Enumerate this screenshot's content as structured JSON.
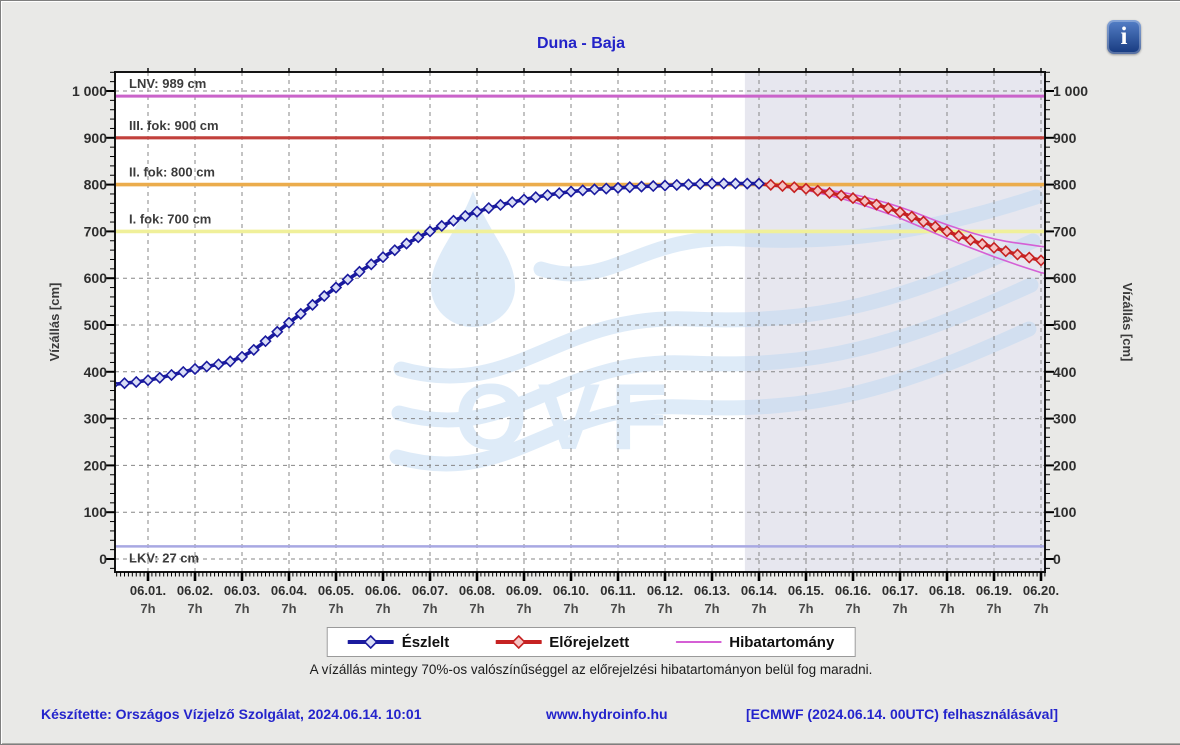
{
  "window": {
    "info_icon_glyph": "i"
  },
  "chart": {
    "watermark": "OVF"
  },
  "chart_data": {
    "type": "line",
    "title": "Duna - Baja",
    "ylabel": "Vízállás [cm]",
    "x_tick_labels": [
      "06.01.",
      "06.02.",
      "06.03.",
      "06.04.",
      "06.05.",
      "06.06.",
      "06.07.",
      "06.08.",
      "06.09.",
      "06.10.",
      "06.11.",
      "06.12.",
      "06.13.",
      "06.14.",
      "06.15.",
      "06.16.",
      "06.17.",
      "06.18.",
      "06.19.",
      "06.20."
    ],
    "x_tick_sublabel": "7h",
    "x_minor_step_hours": 2,
    "yticks": {
      "values": [
        0,
        100,
        200,
        300,
        400,
        500,
        600,
        700,
        800,
        900,
        1000
      ],
      "labels": [
        "0",
        "100",
        "200",
        "300",
        "400",
        "500",
        "600",
        "700",
        "800",
        "900",
        "1 000"
      ]
    },
    "y_minor_step": 20,
    "ylim": [
      -28,
      1041
    ],
    "xlim_days": [
      -0.723,
      19.106
    ],
    "forecast_region_start_day": 12.7,
    "marker_interval_hours": 6,
    "colors": {
      "observed_bg": "#ffffff",
      "forecast_bg": "#e7e7ef",
      "grid": "#878787"
    },
    "reference_lines": [
      {
        "label": "LNV: 989 cm",
        "value": 989,
        "color": "#ca63ca",
        "width": 3.0,
        "label_side": "above"
      },
      {
        "label": "III. fok: 900 cm",
        "value": 900,
        "color": "#c2403c",
        "width": 3.2,
        "label_side": "above"
      },
      {
        "label": "II. fok: 800 cm",
        "value": 800,
        "color": "#ebac4c",
        "width": 3.6,
        "label_side": "above"
      },
      {
        "label": "I. fok: 700 cm",
        "value": 700,
        "color": "#f0f09a",
        "width": 3.6,
        "label_side": "above"
      },
      {
        "label": "LKV: 27 cm",
        "value": 27,
        "color": "#a8a8e2",
        "width": 2.6,
        "label_side": "below"
      }
    ],
    "series": [
      {
        "name": "Hibatartomány felső",
        "color": "#d55fd5",
        "width": 1.6,
        "marker": "none",
        "x": [
          13,
          14,
          15,
          16,
          17,
          18,
          19,
          19.3
        ],
        "y": [
          802,
          794,
          779,
          752,
          714,
          684,
          668,
          665
        ]
      },
      {
        "name": "Hibatartomány alsó",
        "color": "#d55fd5",
        "width": 1.6,
        "marker": "none",
        "x": [
          13,
          14,
          15,
          16,
          17,
          18,
          19,
          19.3
        ],
        "y": [
          802,
          788,
          763,
          728,
          685,
          646,
          612,
          606
        ]
      },
      {
        "name": "Előrejelzett",
        "color": "#c62222",
        "width": 3.6,
        "marker": "diamond",
        "marker_fill": "#f5c3c3",
        "x": [
          13,
          14,
          15,
          16,
          17,
          18,
          19,
          19.3
        ],
        "y": [
          802,
          791,
          771,
          741,
          700,
          665,
          638,
          634
        ]
      },
      {
        "name": "Észlelt",
        "color": "#1a1a9e",
        "width": 3.6,
        "marker": "diamond",
        "marker_fill": "#d9ddf6",
        "x": [
          -0.75,
          0,
          1,
          2,
          3,
          4,
          5,
          6,
          7,
          8,
          9,
          10,
          11,
          12,
          13
        ],
        "y": [
          373,
          382,
          406,
          432,
          505,
          580,
          645,
          700,
          742,
          768,
          785,
          793,
          798,
          802,
          802
        ]
      }
    ],
    "note": "A vízállás mintegy 70%-os valószínűséggel az előrejelzési hibatartományon belül fog maradni."
  },
  "legend": {
    "items": [
      {
        "label": "Észlelt",
        "color": "#1a1a9e",
        "marker": "diamond",
        "marker_fill": "#d9ddf6"
      },
      {
        "label": "Előrejelzett",
        "color": "#c62222",
        "marker": "diamond",
        "marker_fill": "#f5c3c3"
      },
      {
        "label": "Hibatartomány",
        "color": "#d55fd5",
        "marker": "none",
        "marker_fill": "#ffffff"
      }
    ]
  },
  "footer": {
    "made_by": "Készítette: Országos Vízjelző Szolgálat, 2024.06.14. 10:01",
    "website": "www.hydroinfo.hu",
    "source": "[ECMWF (2024.06.14. 00UTC) felhasználásával]"
  }
}
